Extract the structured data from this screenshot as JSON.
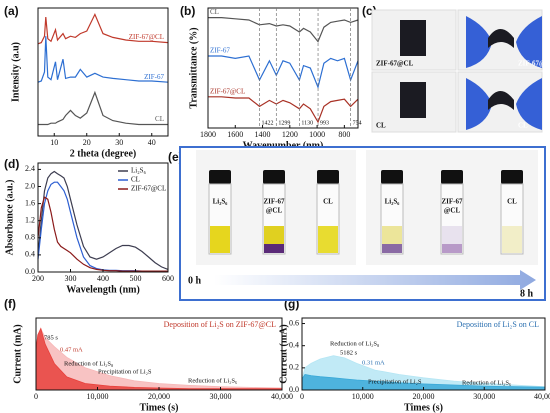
{
  "chart_data": [
    {
      "type": "line",
      "panel_label": "(a)",
      "x_label": "2 theta (degree)",
      "y_label": "Intensity (a.u)",
      "x": [
        5,
        6,
        7,
        7.4,
        8,
        9,
        10.4,
        11,
        12.7,
        13.5,
        15,
        16.5,
        18,
        20,
        22.5,
        25,
        28,
        32,
        36,
        40,
        45
      ],
      "series": [
        {
          "name": "ZIF-67@CL",
          "color": "#c0392b",
          "values": [
            7.2,
            7.3,
            7.8,
            9.3,
            7.6,
            7.4,
            8.3,
            7.5,
            8.0,
            7.6,
            7.8,
            7.7,
            8.0,
            8.2,
            9.5,
            8.0,
            7.7,
            7.5,
            7.4,
            7.4,
            7.3
          ]
        },
        {
          "name": "ZIF-67",
          "color": "#2d6fd2",
          "values": [
            4.2,
            4.3,
            5,
            7.8,
            4.6,
            4.4,
            5.8,
            4.4,
            6.0,
            4.5,
            4.6,
            4.6,
            5.2,
            4.6,
            4.9,
            4.6,
            4.5,
            4.4,
            4.3,
            4.3,
            4.2
          ]
        },
        {
          "name": "CL",
          "color": "#555555",
          "values": [
            0.9,
            0.9,
            0.9,
            0.9,
            0.9,
            1,
            1,
            1.1,
            1.3,
            1.6,
            2.0,
            1.6,
            1.4,
            1.8,
            3.4,
            1.6,
            1.2,
            1.0,
            0.9,
            0.9,
            0.9
          ]
        }
      ],
      "xlim": [
        5,
        45
      ],
      "xticks": [
        10,
        20,
        30,
        40
      ],
      "ylim": [
        0,
        10
      ]
    },
    {
      "type": "line",
      "panel_label": "(b)",
      "x_label": "Wavenumber (nm)",
      "y_label": "Transmittance (%)",
      "x": [
        1800,
        1700,
        1600,
        1500,
        1422,
        1350,
        1299,
        1250,
        1200,
        1130,
        1100,
        1050,
        993,
        950,
        900,
        850,
        800,
        754,
        700
      ],
      "series": [
        {
          "name": "CL",
          "color": "#555555",
          "values": [
            9.2,
            9.2,
            9.1,
            9.0,
            8.6,
            8.7,
            8.5,
            8.6,
            8.5,
            8.0,
            8.3,
            8.0,
            7.2,
            8.4,
            8.8,
            8.9,
            9.0,
            8.8,
            9.0
          ]
        },
        {
          "name": "ZIF-67",
          "color": "#2d6fd2",
          "values": [
            6.0,
            6.0,
            5.8,
            6.0,
            4.0,
            5.6,
            4.4,
            5.6,
            5.4,
            4.0,
            5.2,
            5.0,
            3.4,
            5.4,
            5.8,
            5.6,
            5.8,
            4.0,
            5.6
          ]
        },
        {
          "name": "ZIF-67@CL",
          "color": "#a93226",
          "values": [
            2.6,
            2.6,
            2.5,
            2.5,
            1.8,
            2.3,
            2.0,
            2.3,
            2.1,
            1.6,
            2.0,
            1.6,
            0.5,
            1.8,
            2.2,
            2.3,
            2.4,
            1.8,
            2.4
          ]
        }
      ],
      "annotations": [
        1422,
        1299,
        1130,
        993,
        754
      ],
      "xlim": [
        1800,
        700
      ],
      "xticks": [
        1800,
        1600,
        1400,
        1200,
        1000,
        800
      ],
      "ylim": [
        0,
        10
      ]
    },
    {
      "type": "line",
      "panel_label": "(d)",
      "x_label": "Wavelength (nm)",
      "y_label": "Absorbance (a.u.)",
      "x": [
        200,
        210,
        220,
        230,
        240,
        250,
        260,
        270,
        280,
        290,
        300,
        320,
        340,
        360,
        380,
        400,
        420,
        440,
        460,
        480,
        500,
        520,
        540,
        560,
        580,
        600
      ],
      "series": [
        {
          "name": "Li₂S₆",
          "color": "#3d3d50",
          "values": [
            0.4,
            1.2,
            1.9,
            2.2,
            2.3,
            2.35,
            2.3,
            2.25,
            2.2,
            2.0,
            1.7,
            1.1,
            0.6,
            0.35,
            0.3,
            0.35,
            0.45,
            0.55,
            0.62,
            0.62,
            0.58,
            0.48,
            0.35,
            0.22,
            0.12,
            0.06
          ]
        },
        {
          "name": "CL",
          "color": "#2d5fd2",
          "values": [
            0.3,
            1.0,
            1.6,
            1.9,
            2.05,
            2.1,
            2.1,
            2.0,
            1.9,
            1.7,
            1.4,
            0.8,
            0.35,
            0.15,
            0.08,
            0.05,
            0.04,
            0.04,
            0.03,
            0.03,
            0.03,
            0.02,
            0.02,
            0.02,
            0.02,
            0.02
          ]
        },
        {
          "name": "ZIF-67@CL",
          "color": "#8b1a1a",
          "values": [
            0.8,
            1.5,
            1.75,
            1.7,
            1.4,
            1.0,
            0.7,
            0.6,
            0.55,
            0.5,
            0.45,
            0.3,
            0.18,
            0.1,
            0.06,
            0.04,
            0.03,
            0.03,
            0.02,
            0.02,
            0.02,
            0.02,
            0.02,
            0.02,
            0.02,
            0.02
          ]
        }
      ],
      "xlim": [
        200,
        600
      ],
      "xticks": [
        200,
        300,
        400,
        500,
        600
      ],
      "ylim": [
        0,
        2.55
      ],
      "yticks": [
        {
          "value": 0,
          "label": "0.0"
        },
        {
          "value": 0.4,
          "label": "0.4"
        },
        {
          "value": 0.8,
          "label": "0.8"
        },
        {
          "value": 1.2,
          "label": "1.2"
        },
        {
          "value": 1.6,
          "label": "1.6"
        },
        {
          "value": 2.0,
          "label": "2.0"
        },
        {
          "value": 2.4,
          "label": "2.4"
        }
      ],
      "legend": "top-right"
    },
    {
      "type": "area",
      "panel_label": "(f)",
      "title": "Deposition of Li₂S on ZIF-67@CL",
      "x_label": "Times (s)",
      "y_label": "Current (mA)",
      "x": [
        0,
        300,
        785,
        1500,
        3000,
        5000,
        8000,
        12000,
        16000,
        20000,
        25000,
        30000,
        35000,
        40000
      ],
      "series": [
        {
          "color": "#f7b8b8",
          "values": [
            0.3,
            0.42,
            0.47,
            0.4,
            0.33,
            0.25,
            0.17,
            0.11,
            0.07,
            0.05,
            0.035,
            0.025,
            0.02,
            0.015
          ]
        },
        {
          "color": "#e8413c",
          "values": [
            0.3,
            0.42,
            0.47,
            0.35,
            0.2,
            0.1,
            0.05,
            0.03,
            0.02,
            0.015,
            0.01,
            0.01,
            0.01,
            0.01
          ]
        }
      ],
      "annotations": [
        "785 s",
        "0.47 mA",
        "Reduction of Li₂S₈",
        "Precipitation of Li₂S",
        "Reduction of Li₂S₆"
      ],
      "xlim": [
        0,
        40000
      ],
      "xticks": [
        0,
        {
          "value": 10000,
          "label": "10,000"
        },
        {
          "value": 20000,
          "label": "20,000"
        },
        {
          "value": 30000,
          "label": "30,000"
        },
        {
          "value": 40000,
          "label": "40,000"
        }
      ],
      "ylim": [
        0,
        0.55
      ]
    },
    {
      "type": "area",
      "panel_label": "(g)",
      "title": "Deposition of Li₂S on CL",
      "x_label": "Times (s)",
      "y_label": "Current (mA)",
      "x": [
        0,
        500,
        1500,
        3000,
        5182,
        7000,
        9000,
        12000,
        16000,
        20000,
        25000,
        30000,
        35000,
        40000
      ],
      "series": [
        {
          "color": "#b6e6f4",
          "values": [
            0.1,
            0.2,
            0.24,
            0.28,
            0.31,
            0.29,
            0.24,
            0.18,
            0.14,
            0.11,
            0.08,
            0.06,
            0.045,
            0.03
          ]
        },
        {
          "color": "#3aa9d8",
          "values": [
            0.1,
            0.14,
            0.13,
            0.12,
            0.11,
            0.1,
            0.09,
            0.08,
            0.065,
            0.055,
            0.045,
            0.035,
            0.03,
            0.025
          ]
        }
      ],
      "annotations": [
        "Reduction of Li₂S₈",
        "5182 s",
        "0.31 mA",
        "Precipitation of Li₂S",
        "Reduction of Li₂S₆"
      ],
      "xlim": [
        0,
        40000
      ],
      "xticks": [
        0,
        {
          "value": 10000,
          "label": "10,000"
        },
        {
          "value": 20000,
          "label": "20,000"
        },
        {
          "value": 30000,
          "label": "30,000"
        },
        {
          "value": 40000,
          "label": "40,000"
        }
      ],
      "ylim": [
        0,
        0.65
      ],
      "yticks": [
        {
          "value": 0,
          "label": "0.0"
        },
        {
          "value": 0.2,
          "label": "0.2"
        },
        {
          "value": 0.4,
          "label": "0.4"
        },
        {
          "value": 0.6,
          "label": "0.6"
        }
      ]
    }
  ],
  "photo_c": {
    "panel_label": "(c)",
    "labels": [
      "ZIF-67@CL",
      "ZIF-67@CL",
      "CL",
      "CL"
    ]
  },
  "photo_e": {
    "panel_label": "(e)",
    "vial_labels": [
      [
        "Li₂S₆"
      ],
      [
        "ZIF-67",
        "@CL"
      ],
      [
        "CL"
      ],
      [
        "Li₂S₆"
      ],
      [
        "ZIF-67",
        "@CL"
      ],
      [
        "CL"
      ]
    ],
    "time_start": "0 h",
    "time_end": "8 h"
  }
}
